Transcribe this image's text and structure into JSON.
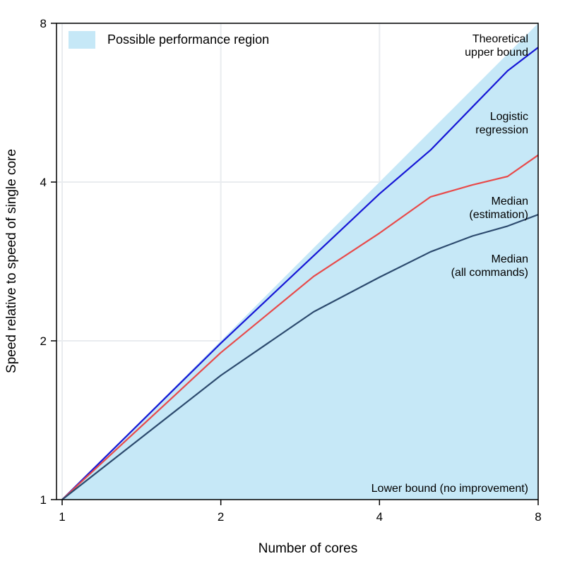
{
  "chart_data": {
    "type": "line",
    "x_scale": "log2",
    "y_scale": "log2",
    "xlim": [
      1,
      8
    ],
    "ylim": [
      1,
      8
    ],
    "xticks": [
      1,
      2,
      4,
      8
    ],
    "yticks": [
      1,
      2,
      4,
      8
    ],
    "xlabel": "Number of cores",
    "ylabel": "Speed relative to speed of single core",
    "grid": true,
    "legend": {
      "position": "top-left",
      "entries": [
        "Possible performance region"
      ]
    },
    "region": {
      "name": "Possible performance region",
      "color": "#c6e8f7",
      "upper": {
        "x": [
          1,
          8
        ],
        "y": [
          1,
          8
        ]
      },
      "lower": {
        "x": [
          1,
          8
        ],
        "y": [
          1,
          1
        ]
      }
    },
    "series": [
      {
        "key": "logistic",
        "color": "#1616d6",
        "x": [
          1,
          2,
          3,
          4,
          5,
          6,
          7,
          8
        ],
        "y": [
          1,
          1.98,
          2.9,
          3.8,
          4.6,
          5.55,
          6.5,
          7.2
        ]
      },
      {
        "key": "median_estimation",
        "color": "#e84a4a",
        "x": [
          1,
          2,
          3,
          4,
          5,
          6,
          7,
          8
        ],
        "y": [
          1,
          1.9,
          2.65,
          3.2,
          3.75,
          3.95,
          4.1,
          4.5
        ]
      },
      {
        "key": "median_all",
        "color": "#2c4a6e",
        "x": [
          1,
          2,
          3,
          4,
          5,
          6,
          7,
          8
        ],
        "y": [
          1,
          1.72,
          2.27,
          2.64,
          2.95,
          3.16,
          3.3,
          3.47
        ]
      }
    ],
    "annotations": [
      {
        "key": "upper",
        "lines": [
          "Theoretical",
          "upper bound"
        ]
      },
      {
        "key": "logistic",
        "lines": [
          "Logistic",
          "regression"
        ]
      },
      {
        "key": "median_estimation",
        "lines": [
          "Median",
          "(estimation)"
        ]
      },
      {
        "key": "median_all",
        "lines": [
          "Median",
          "(all commands)"
        ]
      },
      {
        "key": "lower",
        "lines": [
          "Lower bound (no improvement)"
        ]
      }
    ]
  }
}
